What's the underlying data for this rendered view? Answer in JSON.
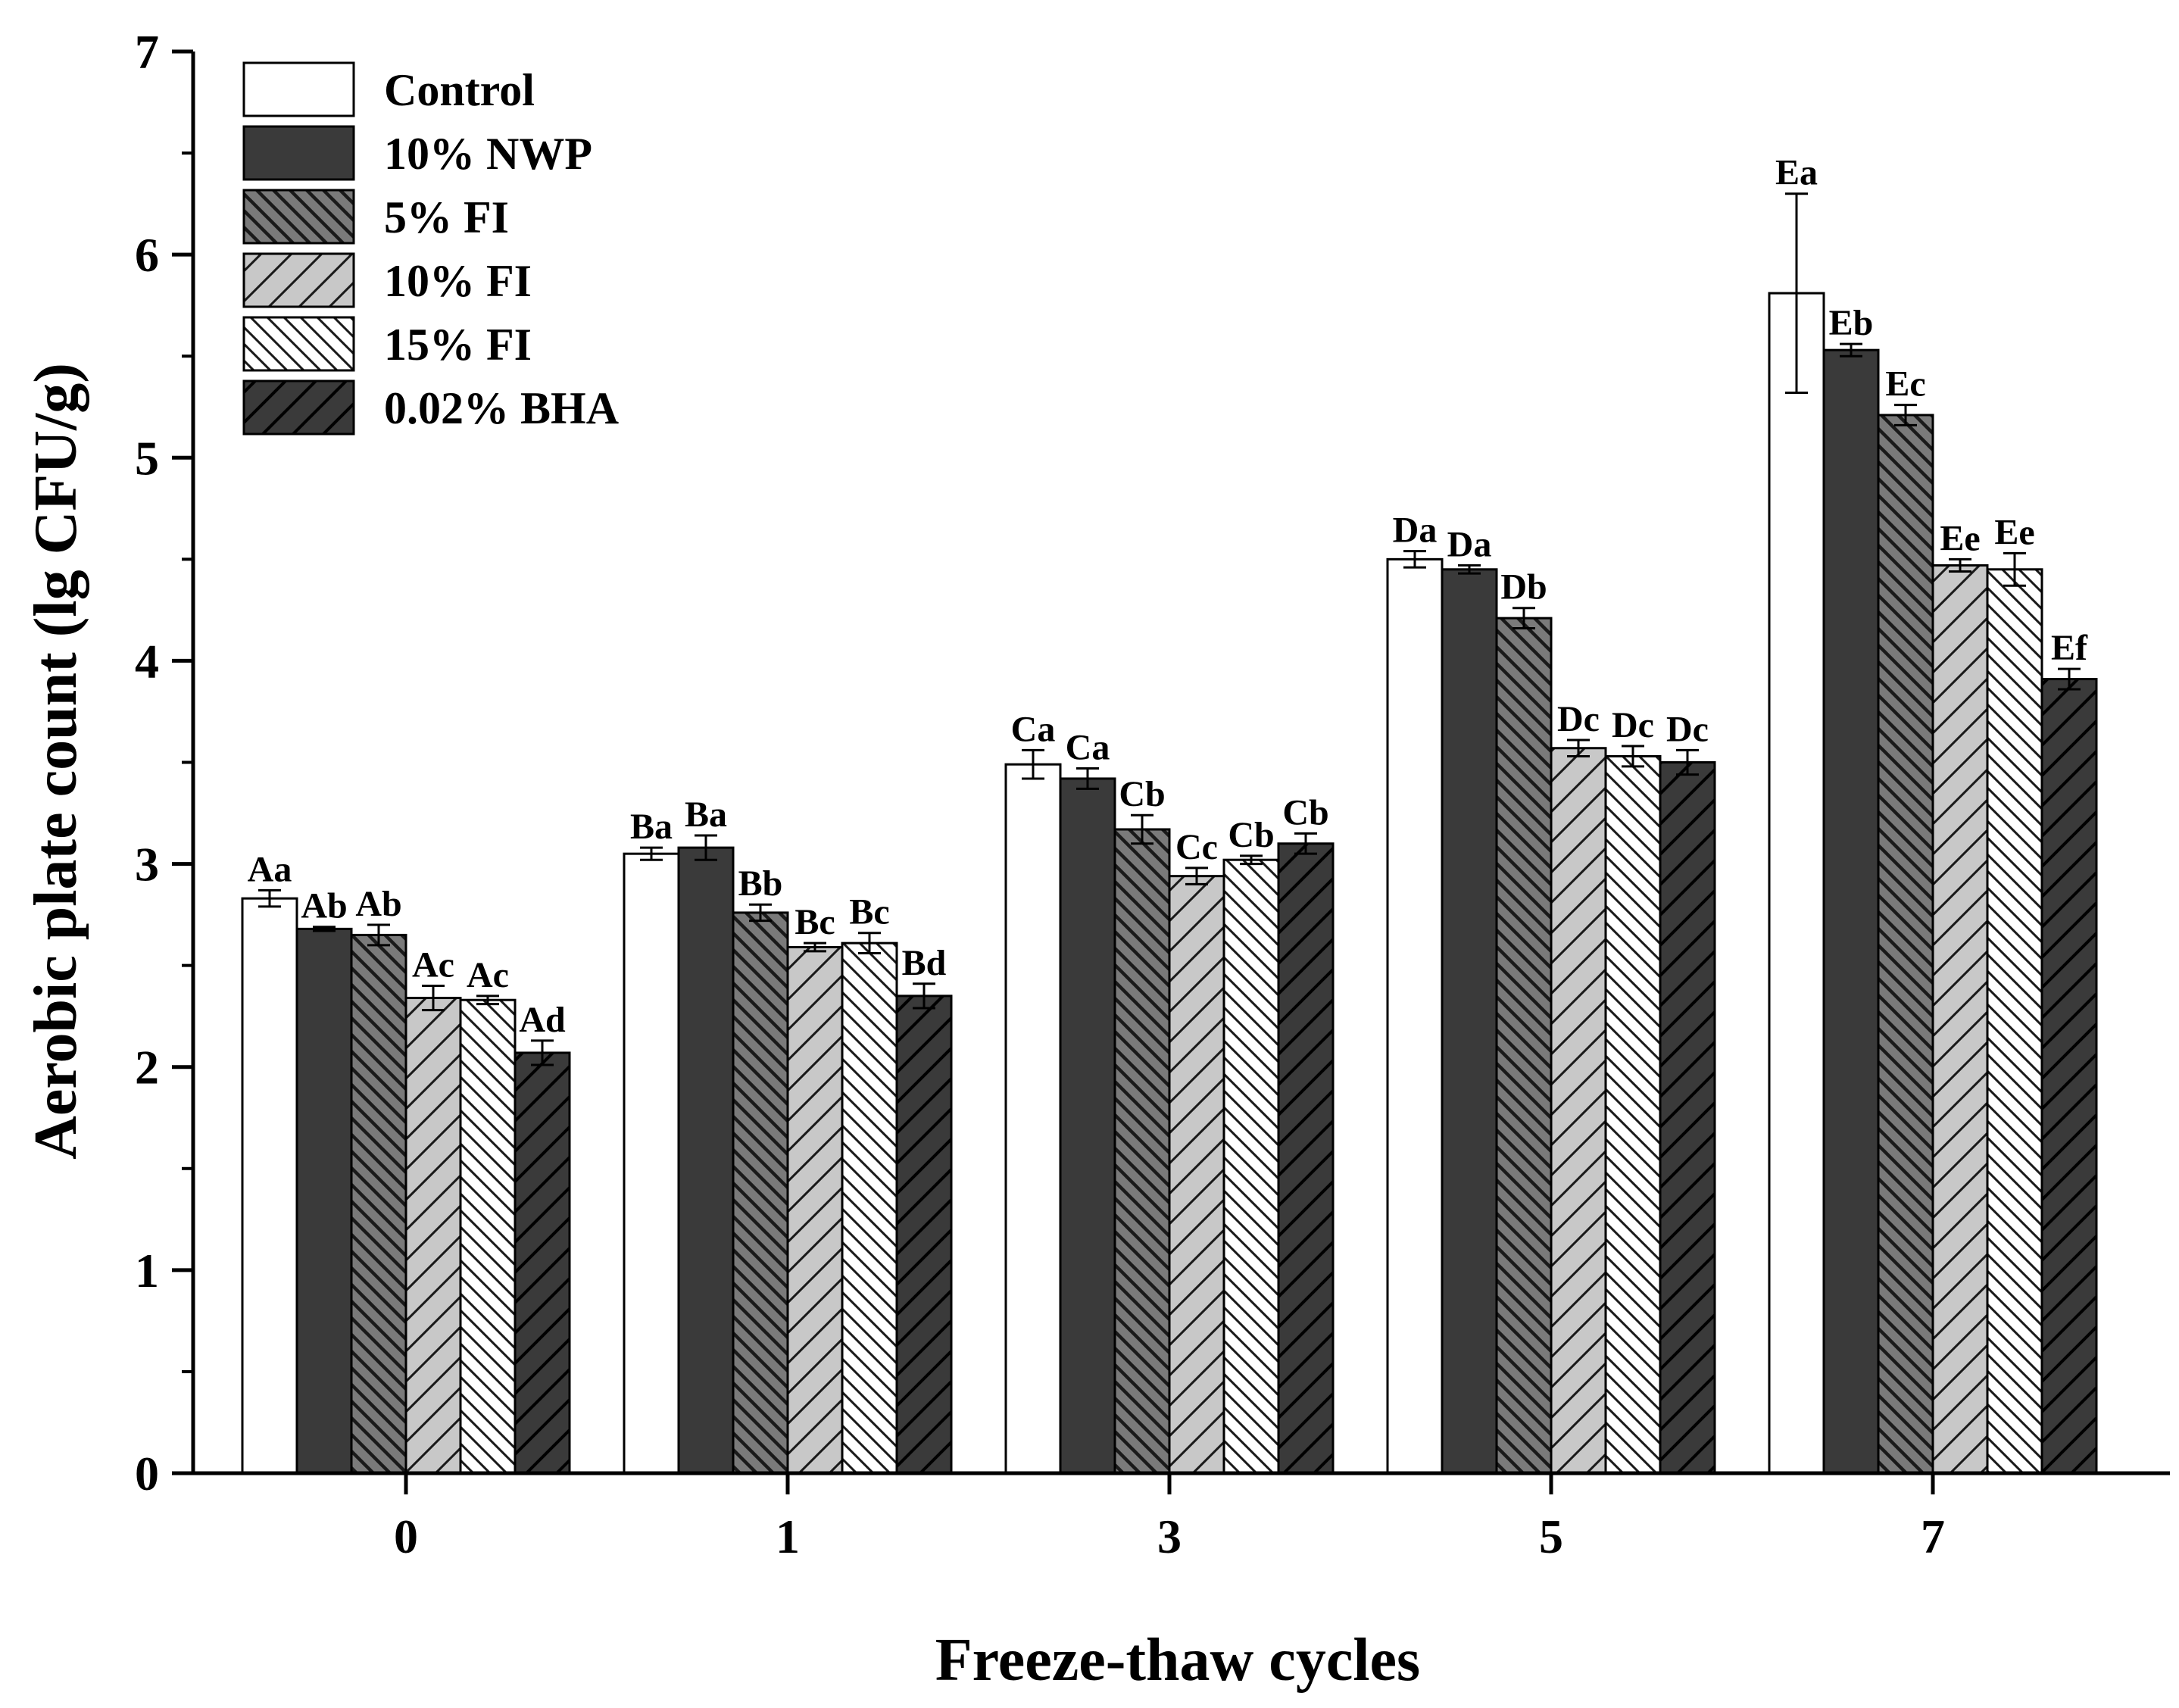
{
  "chart_data": {
    "type": "bar",
    "title": "",
    "xlabel": "Freeze-thaw cycles",
    "ylabel": "Aerobic plate count (lg CFU/g)",
    "ylim": [
      0,
      7
    ],
    "yticks": [
      "0",
      "1",
      "2",
      "3",
      "4",
      "5",
      "6",
      "7"
    ],
    "categories": [
      "0",
      "1",
      "3",
      "5",
      "7"
    ],
    "legend_position": "top-left",
    "grid": false,
    "series": [
      {
        "name": "Control",
        "fill": "#ffffff",
        "pattern": "none",
        "values": [
          2.83,
          3.05,
          3.49,
          4.5,
          5.81
        ],
        "errors": [
          0.04,
          0.03,
          0.07,
          0.04,
          0.49
        ],
        "labels": [
          "Aa",
          "Ba",
          "Ca",
          "Da",
          "Ea"
        ]
      },
      {
        "name": "10%  NWP",
        "fill": "#3a3a3a",
        "pattern": "none",
        "values": [
          2.68,
          3.08,
          3.42,
          4.45,
          5.53
        ],
        "errors": [
          0.01,
          0.06,
          0.05,
          0.02,
          0.03
        ],
        "labels": [
          "Ab",
          "Ba",
          "Ca",
          "Da",
          "Eb"
        ]
      },
      {
        "name": "5%  FI",
        "fill": "#7a7a7a",
        "pattern": "back-dense",
        "values": [
          2.65,
          2.76,
          3.17,
          4.21,
          5.21
        ],
        "errors": [
          0.05,
          0.04,
          0.07,
          0.05,
          0.05
        ],
        "labels": [
          "Ab",
          "Bb",
          "Cb",
          "Db",
          "Ec"
        ]
      },
      {
        "name": "10%  FI",
        "fill": "#c8c8c8",
        "pattern": "forward",
        "values": [
          2.34,
          2.59,
          2.94,
          3.57,
          4.47
        ],
        "errors": [
          0.06,
          0.02,
          0.04,
          0.04,
          0.03
        ],
        "labels": [
          "Ac",
          "Bc",
          "Cc",
          "Dc",
          "Ee"
        ]
      },
      {
        "name": "15%  FI",
        "fill": "#ffffff",
        "pattern": "back",
        "values": [
          2.33,
          2.61,
          3.02,
          3.53,
          4.45
        ],
        "errors": [
          0.02,
          0.05,
          0.02,
          0.05,
          0.08
        ],
        "labels": [
          "Ac",
          "Bc",
          "Cb",
          "Dc",
          "Ee"
        ]
      },
      {
        "name": "0.02%  BHA",
        "fill": "#3a3a3a",
        "pattern": "forward-dark",
        "values": [
          2.07,
          2.35,
          3.1,
          3.5,
          3.91
        ],
        "errors": [
          0.06,
          0.06,
          0.05,
          0.06,
          0.05
        ],
        "labels": [
          "Ad",
          "Bd",
          "Cb",
          "Dc",
          "Ef"
        ]
      }
    ]
  }
}
